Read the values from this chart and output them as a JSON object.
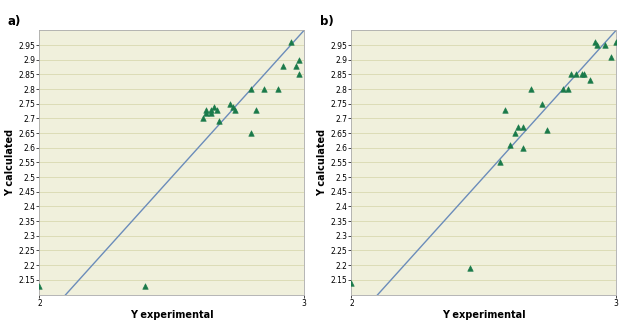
{
  "plot_a": {
    "label": "a)",
    "x": [
      2.0,
      2.4,
      2.62,
      2.63,
      2.63,
      2.65,
      2.65,
      2.66,
      2.67,
      2.68,
      2.72,
      2.73,
      2.74,
      2.8,
      2.8,
      2.82,
      2.85,
      2.9,
      2.92,
      2.95,
      2.97,
      2.98,
      2.98
    ],
    "y": [
      2.13,
      2.13,
      2.7,
      2.72,
      2.73,
      2.72,
      2.73,
      2.74,
      2.73,
      2.69,
      2.75,
      2.74,
      2.73,
      2.8,
      2.65,
      2.73,
      2.8,
      2.8,
      2.88,
      2.96,
      2.88,
      2.85,
      2.9
    ]
  },
  "plot_b": {
    "label": "b)",
    "x": [
      2.0,
      2.45,
      2.56,
      2.58,
      2.6,
      2.62,
      2.63,
      2.65,
      2.65,
      2.68,
      2.72,
      2.74,
      2.8,
      2.82,
      2.83,
      2.85,
      2.87,
      2.88,
      2.9,
      2.92,
      2.93,
      2.96,
      2.98,
      3.0
    ],
    "y": [
      2.14,
      2.19,
      2.55,
      2.73,
      2.61,
      2.65,
      2.67,
      2.67,
      2.6,
      2.8,
      2.75,
      2.66,
      2.8,
      2.8,
      2.85,
      2.85,
      2.85,
      2.85,
      2.83,
      2.96,
      2.95,
      2.95,
      2.91,
      2.96
    ]
  },
  "xlim": [
    2.0,
    3.0
  ],
  "ylim": [
    2.1,
    3.0
  ],
  "yticks": [
    2.15,
    2.2,
    2.25,
    2.3,
    2.35,
    2.4,
    2.45,
    2.5,
    2.55,
    2.6,
    2.65,
    2.7,
    2.75,
    2.8,
    2.85,
    2.9,
    2.95
  ],
  "ytick_labels": [
    "2.15",
    "2.2",
    "2.25",
    "2.3",
    "2.35",
    "2.4",
    "2.45",
    "2.5",
    "2.55",
    "2.6",
    "2.65",
    "2.7",
    "2.75",
    "2.8",
    "2.85",
    "2.9",
    "2.95"
  ],
  "xticks": [
    2.0,
    3.0
  ],
  "xtick_labels": [
    "2",
    "3"
  ],
  "xlabel": "Y experimental",
  "ylabel": "Y calculated",
  "marker_color": "#1a7a4a",
  "marker_edge_color": "#1a7a4a",
  "line_color": "#6b8cba",
  "bg_color": "#f0f0dc",
  "grid_color": "#d4d4a8",
  "marker_size": 4,
  "line_width": 1.0,
  "tick_fontsize": 5.5,
  "label_fontsize": 7.0,
  "sublabel_fontsize": 8.5
}
